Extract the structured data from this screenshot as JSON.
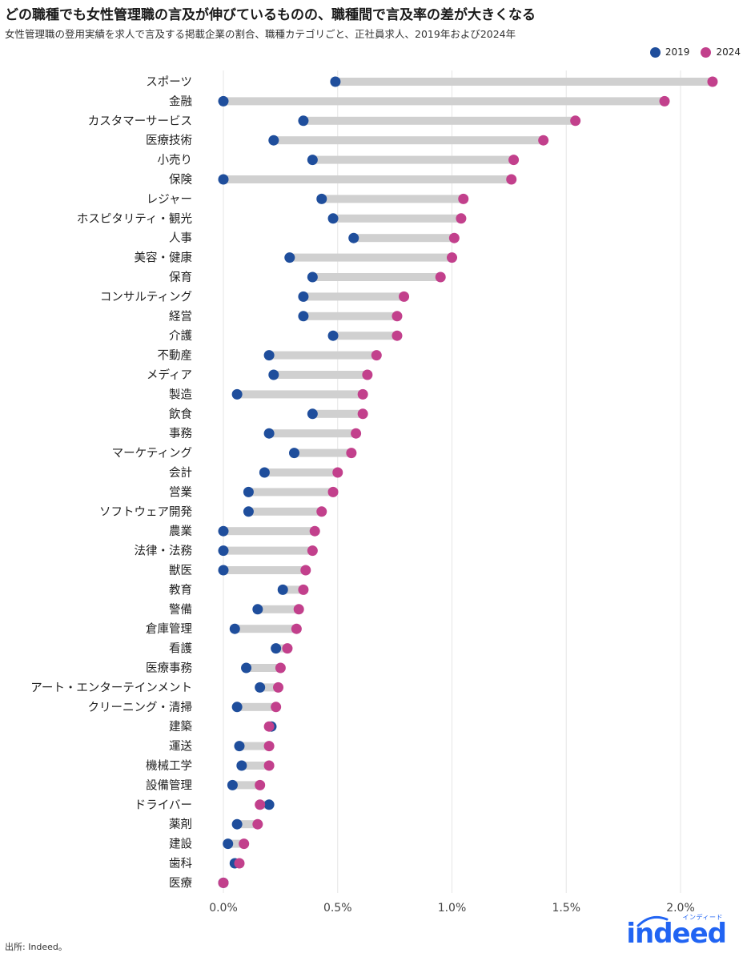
{
  "title": "どの職種でも女性管理職の言及が伸びているものの、職種間で言及率の差が大きくなる",
  "subtitle": "女性管理職の登用実績を求人で言及する掲載企業の割合、職種カテゴリごと、正社員求人、2019年および2024年",
  "source": "出所: Indeed。",
  "logo": {
    "text": "indeed",
    "superscript": "インディード"
  },
  "colors": {
    "s2019": "#1f4e9c",
    "s2024": "#c2408c",
    "bar": "#d0d0d0",
    "grid": "#e6e6e6"
  },
  "chart_data": {
    "type": "dumbbell",
    "xlim": [
      0,
      2.15
    ],
    "x_ticks": [
      "0.0%",
      "0.5%",
      "1.0%",
      "1.5%",
      "2.0%"
    ],
    "x_tick_values": [
      0,
      0.5,
      1.0,
      1.5,
      2.0
    ],
    "grid": true,
    "legend_position": "top-right",
    "series": [
      {
        "name": "2019"
      },
      {
        "name": "2024"
      }
    ],
    "categories": [
      "スポーツ",
      "金融",
      "カスタマーサービス",
      "医療技術",
      "小売り",
      "保険",
      "レジャー",
      "ホスピタリティ・観光",
      "人事",
      "美容・健康",
      "保育",
      "コンサルティング",
      "経営",
      "介護",
      "不動産",
      "メディア",
      "製造",
      "飲食",
      "事務",
      "マーケティング",
      "会計",
      "営業",
      "ソフトウェア開発",
      "農業",
      "法律・法務",
      "獣医",
      "教育",
      "警備",
      "倉庫管理",
      "看護",
      "医療事務",
      "アート・エンターテインメント",
      "クリーニング・清掃",
      "建築",
      "運送",
      "機械工学",
      "設備管理",
      "ドライバー",
      "薬剤",
      "建設",
      "歯科",
      "医療"
    ],
    "values_2019": [
      0.49,
      0.0,
      0.35,
      0.22,
      0.39,
      0.0,
      0.43,
      0.48,
      0.57,
      0.29,
      0.39,
      0.35,
      0.35,
      0.48,
      0.2,
      0.22,
      0.06,
      0.39,
      0.2,
      0.31,
      0.18,
      0.11,
      0.11,
      0.0,
      0.0,
      0.0,
      0.26,
      0.15,
      0.05,
      0.23,
      0.1,
      0.16,
      0.06,
      0.21,
      0.07,
      0.08,
      0.04,
      0.2,
      0.06,
      0.02,
      0.05,
      0.0
    ],
    "values_2024": [
      2.14,
      1.93,
      1.54,
      1.4,
      1.27,
      1.26,
      1.05,
      1.04,
      1.01,
      1.0,
      0.95,
      0.79,
      0.76,
      0.76,
      0.67,
      0.63,
      0.61,
      0.61,
      0.58,
      0.56,
      0.5,
      0.48,
      0.43,
      0.4,
      0.39,
      0.36,
      0.35,
      0.33,
      0.32,
      0.28,
      0.25,
      0.24,
      0.23,
      0.2,
      0.2,
      0.2,
      0.16,
      0.16,
      0.15,
      0.09,
      0.07,
      0.0
    ]
  }
}
